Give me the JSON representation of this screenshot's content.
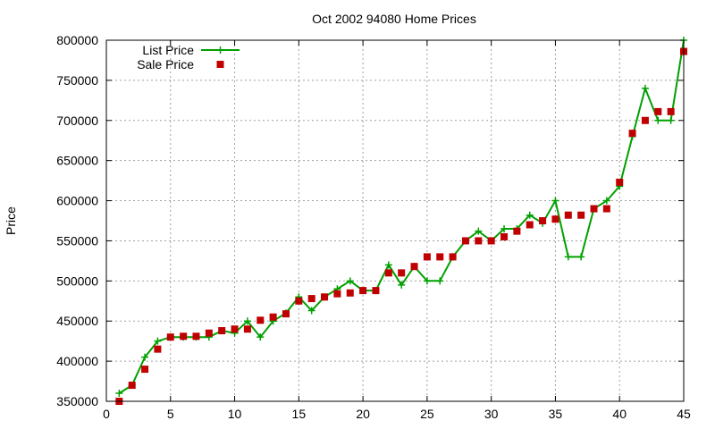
{
  "chart_data": {
    "type": "line",
    "title": "Oct 2002 94080 Home Prices",
    "xlabel": "",
    "ylabel": "Price",
    "xlim": [
      0,
      45
    ],
    "ylim": [
      350000,
      800000
    ],
    "xticks": [
      0,
      5,
      10,
      15,
      20,
      25,
      30,
      35,
      40,
      45
    ],
    "yticks": [
      350000,
      400000,
      450000,
      500000,
      550000,
      600000,
      650000,
      700000,
      750000,
      800000
    ],
    "grid": true,
    "legend_position": "top-left",
    "series": [
      {
        "name": "List Price",
        "style": "line-plus",
        "color": "#00a000",
        "x": [
          1,
          2,
          3,
          4,
          5,
          6,
          7,
          8,
          9,
          10,
          11,
          12,
          13,
          14,
          15,
          16,
          17,
          18,
          19,
          20,
          21,
          22,
          23,
          24,
          25,
          26,
          27,
          28,
          29,
          30,
          31,
          32,
          33,
          34,
          35,
          36,
          37,
          38,
          39,
          40,
          41,
          42,
          43,
          44,
          45
        ],
        "y": [
          360000,
          370000,
          405000,
          425000,
          430000,
          430000,
          430000,
          430000,
          438000,
          435000,
          450000,
          430000,
          450000,
          460000,
          480000,
          463000,
          480000,
          490000,
          500000,
          488000,
          488000,
          520000,
          495000,
          518000,
          500000,
          500000,
          530000,
          550000,
          562000,
          550000,
          565000,
          565000,
          582000,
          572000,
          600000,
          530000,
          530000,
          590000,
          600000,
          618000,
          680000,
          740000,
          700000,
          700000,
          800000
        ]
      },
      {
        "name": "Sale Price",
        "style": "square",
        "color": "#c00000",
        "x": [
          1,
          2,
          3,
          4,
          5,
          6,
          7,
          8,
          9,
          10,
          11,
          12,
          13,
          14,
          15,
          16,
          17,
          18,
          19,
          20,
          21,
          22,
          23,
          24,
          25,
          26,
          27,
          28,
          29,
          30,
          31,
          32,
          33,
          34,
          35,
          36,
          37,
          38,
          39,
          40,
          41,
          42,
          43,
          44,
          45
        ],
        "y": [
          350000,
          370000,
          390000,
          415000,
          430000,
          431000,
          431000,
          435000,
          438000,
          440000,
          440000,
          451000,
          455000,
          459000,
          475000,
          478000,
          480000,
          484000,
          485000,
          488000,
          488000,
          510000,
          510000,
          518000,
          530000,
          530000,
          530000,
          550000,
          550000,
          550000,
          555000,
          562000,
          570000,
          575000,
          577000,
          582000,
          582000,
          590000,
          590000,
          623000,
          684000,
          700000,
          711000,
          711000,
          786000
        ]
      }
    ]
  }
}
